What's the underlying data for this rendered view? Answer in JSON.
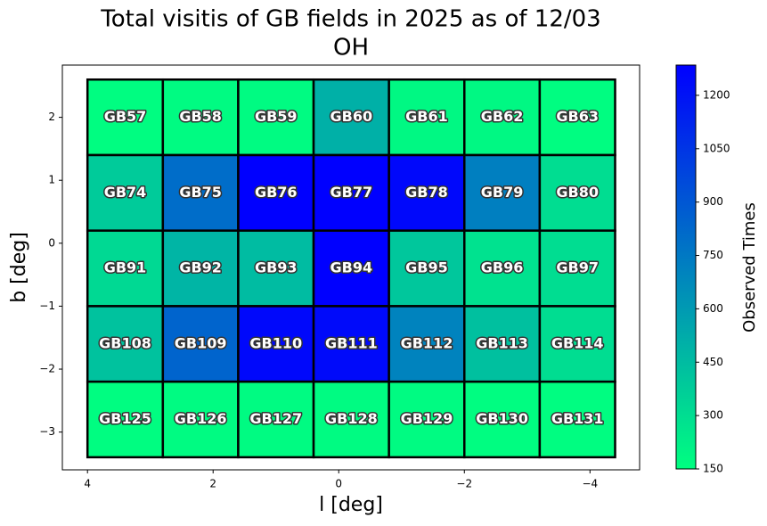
{
  "chart_data": {
    "type": "heatmap",
    "title": [
      "Total visitis of GB fields in 2025 as of 12/03",
      "OH"
    ],
    "xlabel": "l [deg]",
    "ylabel": "b [deg]",
    "xlim": [
      4.4,
      -4.79
    ],
    "ylim": [
      -3.6,
      2.83
    ],
    "xticks": [
      4,
      2,
      0,
      {
        "value": -2,
        "label": "−2"
      },
      {
        "value": -4,
        "label": "−4"
      }
    ],
    "yticks": [
      2,
      1,
      0,
      {
        "value": -1,
        "label": "−1"
      },
      {
        "value": -2,
        "label": "−2"
      },
      {
        "value": -3,
        "label": "−3"
      }
    ],
    "colormap": "winter",
    "clim": [
      150,
      1285
    ],
    "cticks": [
      150,
      300,
      450,
      600,
      750,
      900,
      1050,
      1200
    ],
    "colorbar_label": "Observed Times",
    "cells": [
      {
        "label": "GB57",
        "l": 3.4,
        "b": 2.0,
        "value": 160
      },
      {
        "label": "GB58",
        "l": 2.2,
        "b": 2.0,
        "value": 170
      },
      {
        "label": "GB59",
        "l": 1.0,
        "b": 2.0,
        "value": 170
      },
      {
        "label": "GB60",
        "l": -0.2,
        "b": 2.0,
        "value": 500
      },
      {
        "label": "GB61",
        "l": -1.4,
        "b": 2.0,
        "value": 180
      },
      {
        "label": "GB62",
        "l": -2.6,
        "b": 2.0,
        "value": 180
      },
      {
        "label": "GB63",
        "l": -3.8,
        "b": 2.0,
        "value": 160
      },
      {
        "label": "GB74",
        "l": 3.4,
        "b": 0.8,
        "value": 380
      },
      {
        "label": "GB75",
        "l": 2.2,
        "b": 0.8,
        "value": 800
      },
      {
        "label": "GB76",
        "l": 1.0,
        "b": 0.8,
        "value": 1285
      },
      {
        "label": "GB77",
        "l": -0.2,
        "b": 0.8,
        "value": 1285
      },
      {
        "label": "GB78",
        "l": -1.4,
        "b": 0.8,
        "value": 1250
      },
      {
        "label": "GB79",
        "l": -2.6,
        "b": 0.8,
        "value": 720
      },
      {
        "label": "GB80",
        "l": -3.8,
        "b": 0.8,
        "value": 300
      },
      {
        "label": "GB91",
        "l": 3.4,
        "b": -0.4,
        "value": 320
      },
      {
        "label": "GB92",
        "l": 2.2,
        "b": -0.4,
        "value": 480
      },
      {
        "label": "GB93",
        "l": 1.0,
        "b": -0.4,
        "value": 450
      },
      {
        "label": "GB94",
        "l": -0.2,
        "b": -0.4,
        "value": 1285
      },
      {
        "label": "GB95",
        "l": -1.4,
        "b": -0.4,
        "value": 400
      },
      {
        "label": "GB96",
        "l": -2.6,
        "b": -0.4,
        "value": 280
      },
      {
        "label": "GB97",
        "l": -3.8,
        "b": -0.4,
        "value": 300
      },
      {
        "label": "GB108",
        "l": 3.4,
        "b": -1.6,
        "value": 420
      },
      {
        "label": "GB109",
        "l": 2.2,
        "b": -1.6,
        "value": 840
      },
      {
        "label": "GB110",
        "l": 1.0,
        "b": -1.6,
        "value": 1250
      },
      {
        "label": "GB111",
        "l": -0.2,
        "b": -1.6,
        "value": 1240
      },
      {
        "label": "GB112",
        "l": -1.4,
        "b": -1.6,
        "value": 700
      },
      {
        "label": "GB113",
        "l": -2.6,
        "b": -1.6,
        "value": 430
      },
      {
        "label": "GB114",
        "l": -3.8,
        "b": -1.6,
        "value": 300
      },
      {
        "label": "GB125",
        "l": 3.4,
        "b": -2.8,
        "value": 160
      },
      {
        "label": "GB126",
        "l": 2.2,
        "b": -2.8,
        "value": 170
      },
      {
        "label": "GB127",
        "l": 1.0,
        "b": -2.8,
        "value": 170
      },
      {
        "label": "GB128",
        "l": -0.2,
        "b": -2.8,
        "value": 170
      },
      {
        "label": "GB129",
        "l": -1.4,
        "b": -2.8,
        "value": 170
      },
      {
        "label": "GB130",
        "l": -2.6,
        "b": -2.8,
        "value": 160
      },
      {
        "label": "GB131",
        "l": -3.8,
        "b": -2.8,
        "value": 160
      }
    ]
  }
}
